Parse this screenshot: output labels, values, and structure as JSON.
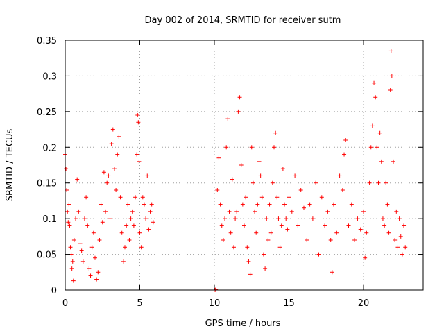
{
  "chart_data": {
    "type": "scatter",
    "title": "Day 002 of 2014, SRMTID for receiver sutm",
    "xlabel": "GPS time / hours",
    "ylabel": "SRMTID / TECUs",
    "xlim": [
      0,
      24
    ],
    "ylim": [
      0,
      0.35
    ],
    "x_ticks": [
      0,
      5,
      10,
      15,
      20
    ],
    "y_ticks": [
      0,
      0.05,
      0.1,
      0.15,
      0.2,
      0.25,
      0.3,
      0.35
    ],
    "x_tick_labels": [
      "0",
      "5",
      "10",
      "15",
      "20"
    ],
    "y_tick_labels": [
      "0",
      "0.05",
      "0.1",
      "0.15",
      "0.2",
      "0.25",
      "0.3",
      "0.35"
    ],
    "grid": true,
    "marker": "+",
    "series": [
      {
        "name": "sutm",
        "color": "#ff0000",
        "points": [
          [
            0.0,
            0.19
          ],
          [
            0.05,
            0.17
          ],
          [
            0.1,
            0.14
          ],
          [
            0.15,
            0.11
          ],
          [
            0.2,
            0.095
          ],
          [
            0.25,
            0.12
          ],
          [
            0.3,
            0.09
          ],
          [
            0.35,
            0.06
          ],
          [
            0.4,
            0.05
          ],
          [
            0.45,
            0.03
          ],
          [
            0.5,
            0.04
          ],
          [
            0.55,
            0.013
          ],
          [
            0.6,
            0.07
          ],
          [
            0.7,
            0.1
          ],
          [
            0.8,
            0.155
          ],
          [
            0.9,
            0.11
          ],
          [
            1.0,
            0.065
          ],
          [
            1.1,
            0.055
          ],
          [
            1.2,
            0.04
          ],
          [
            1.3,
            0.1
          ],
          [
            1.4,
            0.13
          ],
          [
            1.5,
            0.09
          ],
          [
            1.6,
            0.03
          ],
          [
            1.7,
            0.02
          ],
          [
            1.8,
            0.06
          ],
          [
            1.9,
            0.08
          ],
          [
            2.0,
            0.045
          ],
          [
            2.1,
            0.015
          ],
          [
            2.2,
            0.025
          ],
          [
            2.3,
            0.07
          ],
          [
            2.4,
            0.12
          ],
          [
            2.5,
            0.095
          ],
          [
            2.6,
            0.165
          ],
          [
            2.7,
            0.11
          ],
          [
            2.8,
            0.15
          ],
          [
            2.9,
            0.16
          ],
          [
            3.0,
            0.1
          ],
          [
            3.1,
            0.205
          ],
          [
            3.2,
            0.225
          ],
          [
            3.3,
            0.17
          ],
          [
            3.4,
            0.14
          ],
          [
            3.5,
            0.19
          ],
          [
            3.6,
            0.215
          ],
          [
            3.7,
            0.13
          ],
          [
            3.8,
            0.08
          ],
          [
            3.9,
            0.04
          ],
          [
            4.0,
            0.06
          ],
          [
            4.1,
            0.09
          ],
          [
            4.2,
            0.12
          ],
          [
            4.3,
            0.07
          ],
          [
            4.4,
            0.1
          ],
          [
            4.5,
            0.11
          ],
          [
            4.6,
            0.09
          ],
          [
            4.7,
            0.13
          ],
          [
            4.8,
            0.19
          ],
          [
            4.85,
            0.245
          ],
          [
            4.9,
            0.235
          ],
          [
            4.95,
            0.18
          ],
          [
            5.0,
            0.08
          ],
          [
            5.1,
            0.06
          ],
          [
            5.2,
            0.13
          ],
          [
            5.3,
            0.12
          ],
          [
            5.4,
            0.1
          ],
          [
            5.5,
            0.16
          ],
          [
            5.6,
            0.085
          ],
          [
            5.7,
            0.11
          ],
          [
            5.8,
            0.12
          ],
          [
            5.9,
            0.095
          ],
          [
            10.05,
            0.0
          ],
          [
            10.1,
            0.001
          ],
          [
            10.2,
            0.14
          ],
          [
            10.3,
            0.185
          ],
          [
            10.4,
            0.12
          ],
          [
            10.5,
            0.09
          ],
          [
            10.6,
            0.07
          ],
          [
            10.7,
            0.1
          ],
          [
            10.8,
            0.2
          ],
          [
            10.9,
            0.24
          ],
          [
            11.0,
            0.11
          ],
          [
            11.1,
            0.08
          ],
          [
            11.2,
            0.155
          ],
          [
            11.3,
            0.06
          ],
          [
            11.4,
            0.1
          ],
          [
            11.5,
            0.11
          ],
          [
            11.6,
            0.25
          ],
          [
            11.7,
            0.27
          ],
          [
            11.8,
            0.175
          ],
          [
            11.9,
            0.12
          ],
          [
            12.0,
            0.09
          ],
          [
            12.1,
            0.13
          ],
          [
            12.2,
            0.06
          ],
          [
            12.3,
            0.04
          ],
          [
            12.4,
            0.022
          ],
          [
            12.5,
            0.2
          ],
          [
            12.6,
            0.15
          ],
          [
            12.7,
            0.11
          ],
          [
            12.8,
            0.08
          ],
          [
            12.9,
            0.12
          ],
          [
            13.0,
            0.18
          ],
          [
            13.1,
            0.16
          ],
          [
            13.2,
            0.13
          ],
          [
            13.3,
            0.05
          ],
          [
            13.4,
            0.03
          ],
          [
            13.5,
            0.1
          ],
          [
            13.6,
            0.07
          ],
          [
            13.7,
            0.12
          ],
          [
            13.8,
            0.08
          ],
          [
            13.9,
            0.15
          ],
          [
            14.0,
            0.2
          ],
          [
            14.1,
            0.22
          ],
          [
            14.2,
            0.13
          ],
          [
            14.3,
            0.1
          ],
          [
            14.4,
            0.06
          ],
          [
            14.5,
            0.09
          ],
          [
            14.6,
            0.17
          ],
          [
            14.7,
            0.12
          ],
          [
            14.8,
            0.1
          ],
          [
            14.9,
            0.085
          ],
          [
            15.0,
            0.13
          ],
          [
            15.2,
            0.11
          ],
          [
            15.4,
            0.16
          ],
          [
            15.6,
            0.09
          ],
          [
            15.8,
            0.14
          ],
          [
            16.0,
            0.115
          ],
          [
            16.2,
            0.07
          ],
          [
            16.4,
            0.12
          ],
          [
            16.6,
            0.1
          ],
          [
            16.8,
            0.15
          ],
          [
            17.0,
            0.05
          ],
          [
            17.2,
            0.13
          ],
          [
            17.4,
            0.09
          ],
          [
            17.6,
            0.11
          ],
          [
            17.8,
            0.07
          ],
          [
            17.9,
            0.025
          ],
          [
            18.0,
            0.12
          ],
          [
            18.2,
            0.08
          ],
          [
            18.4,
            0.16
          ],
          [
            18.6,
            0.14
          ],
          [
            18.7,
            0.19
          ],
          [
            18.8,
            0.21
          ],
          [
            19.0,
            0.09
          ],
          [
            19.2,
            0.12
          ],
          [
            19.4,
            0.07
          ],
          [
            19.6,
            0.1
          ],
          [
            19.8,
            0.085
          ],
          [
            20.0,
            0.11
          ],
          [
            20.1,
            0.045
          ],
          [
            20.2,
            0.08
          ],
          [
            20.4,
            0.15
          ],
          [
            20.5,
            0.2
          ],
          [
            20.6,
            0.23
          ],
          [
            20.7,
            0.29
          ],
          [
            20.8,
            0.27
          ],
          [
            20.9,
            0.2
          ],
          [
            21.0,
            0.15
          ],
          [
            21.1,
            0.22
          ],
          [
            21.2,
            0.18
          ],
          [
            21.3,
            0.1
          ],
          [
            21.4,
            0.09
          ],
          [
            21.5,
            0.15
          ],
          [
            21.6,
            0.12
          ],
          [
            21.7,
            0.08
          ],
          [
            21.8,
            0.28
          ],
          [
            21.85,
            0.335
          ],
          [
            21.9,
            0.3
          ],
          [
            22.0,
            0.18
          ],
          [
            22.1,
            0.07
          ],
          [
            22.2,
            0.11
          ],
          [
            22.3,
            0.06
          ],
          [
            22.4,
            0.1
          ],
          [
            22.5,
            0.075
          ],
          [
            22.6,
            0.05
          ],
          [
            22.7,
            0.09
          ],
          [
            22.8,
            0.06
          ]
        ]
      }
    ]
  }
}
